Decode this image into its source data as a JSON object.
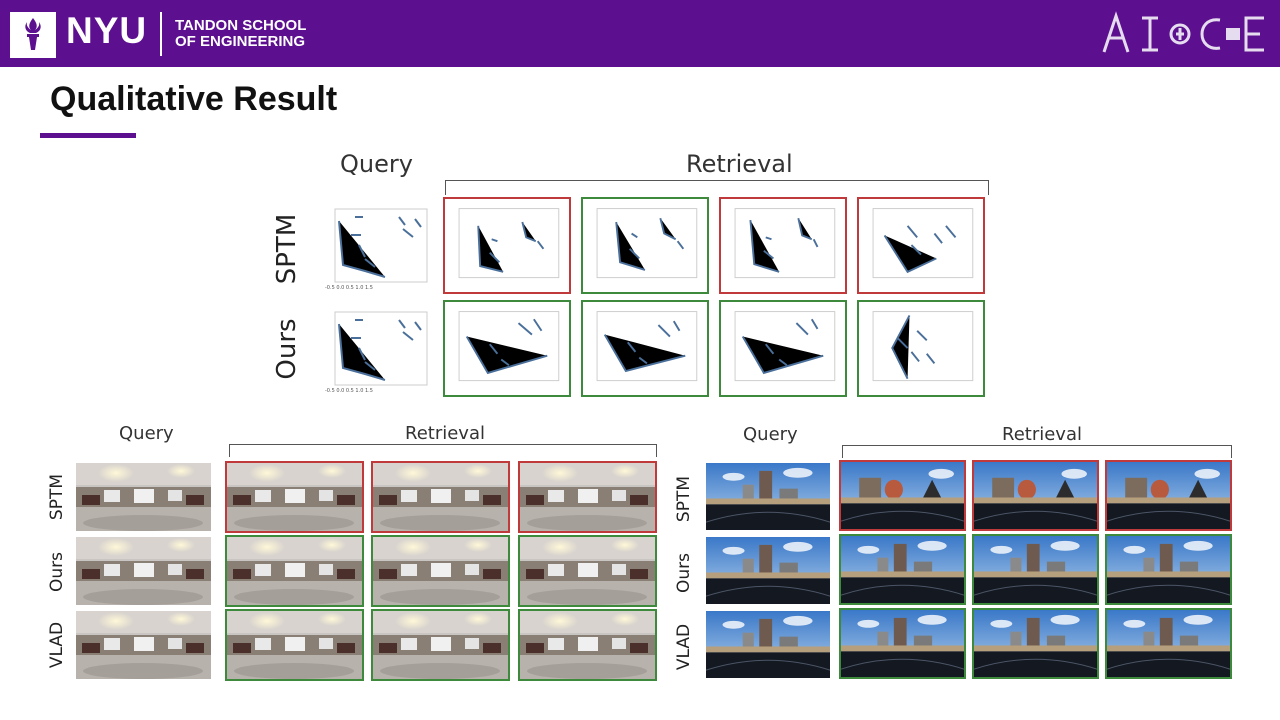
{
  "header": {
    "logo_text": "NYU",
    "school_line1": "TANDON SCHOOL",
    "school_line2": "OF ENGINEERING",
    "brand_right": "AI4CE",
    "colors": {
      "header_bg": "#5c0f8f",
      "correct": "#3d8a3d",
      "incorrect": "#c0393b"
    }
  },
  "slide": {
    "title": "Qualitative Result"
  },
  "top_figure": {
    "query_label": "Query",
    "retrieval_label": "Retrieval",
    "rows": [
      {
        "label": "SPTM",
        "results": [
          "incorrect",
          "correct",
          "incorrect",
          "incorrect"
        ]
      },
      {
        "label": "Ours",
        "results": [
          "correct",
          "correct",
          "correct",
          "correct"
        ]
      }
    ]
  },
  "indoor_figure": {
    "query_label": "Query",
    "retrieval_label": "Retrieval",
    "rows": [
      {
        "label": "SPTM",
        "results": [
          "incorrect",
          "incorrect",
          "incorrect"
        ]
      },
      {
        "label": "Ours",
        "results": [
          "correct",
          "correct",
          "correct"
        ]
      },
      {
        "label": "VLAD",
        "results": [
          "correct",
          "correct",
          "correct"
        ]
      }
    ]
  },
  "outdoor_figure": {
    "query_label": "Query",
    "retrieval_label": "Retrieval",
    "rows": [
      {
        "label": "SPTM",
        "results": [
          "incorrect",
          "incorrect",
          "incorrect"
        ]
      },
      {
        "label": "Ours",
        "results": [
          "correct",
          "correct",
          "correct"
        ]
      },
      {
        "label": "VLAD",
        "results": [
          "correct",
          "correct",
          "correct"
        ]
      }
    ]
  }
}
